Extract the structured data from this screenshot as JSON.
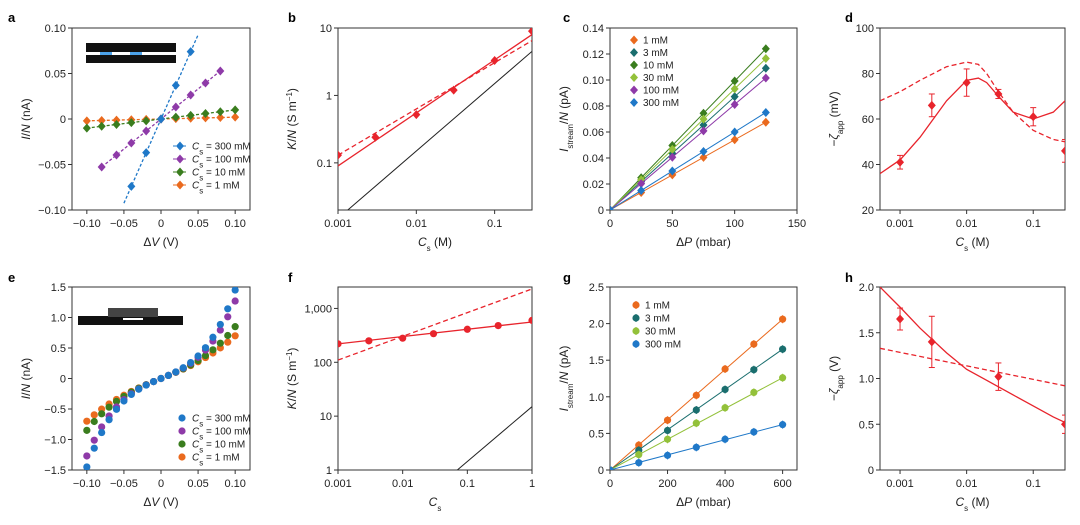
{
  "panels": [
    {
      "label": "a",
      "type": "scatter",
      "ylabel": "I/N (nA)",
      "xlabel": "ΔV (V)",
      "xlim": [
        -0.12,
        0.12
      ],
      "ylim": [
        -0.1,
        0.1
      ],
      "xticks": [
        -0.1,
        -0.05,
        0,
        0.05,
        0.1
      ],
      "xtick_labels": [
        "−0.10",
        "−0.05",
        "0",
        "0.05",
        "0.10"
      ],
      "yticks": [
        -0.1,
        -0.05,
        0,
        0.05,
        0.1
      ],
      "ytick_labels": [
        "−0.10",
        "−0.05",
        "0",
        "0.05",
        "0.10"
      ],
      "legend": [
        "C_s = 300 mM",
        "C_s = 100 mM",
        "C_s = 10 mM",
        "C_s = 1 mM"
      ],
      "inset": "device-schematic-a"
    },
    {
      "label": "b",
      "type": "line-log",
      "ylabel": "K/N (S m⁻¹)",
      "xlabel": "C_s (M)",
      "xticks": [
        0.001,
        0.01,
        0.1
      ],
      "xtick_labels": [
        "0.001",
        "0.01",
        "0.1"
      ],
      "yticks": [
        0.1,
        1,
        10
      ],
      "ytick_labels": [
        "0.1",
        "1",
        "10"
      ]
    },
    {
      "label": "c",
      "type": "scatter",
      "ylabel": "I_stream/N (pA)",
      "xlabel": "ΔP (mbar)",
      "xticks": [
        0,
        50,
        100,
        150
      ],
      "xtick_labels": [
        "0",
        "50",
        "100",
        "150"
      ],
      "yticks": [
        0,
        0.02,
        0.04,
        0.06,
        0.08,
        0.1,
        0.12,
        0.14
      ],
      "ytick_labels": [
        "0",
        "0.02",
        "0.04",
        "0.06",
        "0.08",
        "0.10",
        "0.12",
        "0.14"
      ],
      "legend": [
        "1 mM",
        "3 mM",
        "10 mM",
        "30 mM",
        "100 mM",
        "300 mM"
      ]
    },
    {
      "label": "d",
      "type": "line-log",
      "ylabel": "−ζ_app (mV)",
      "xlabel": "C_s (M)",
      "xticks": [
        0.001,
        0.01,
        0.1
      ],
      "xtick_labels": [
        "0.001",
        "0.01",
        "0.1"
      ],
      "yticks": [
        20,
        40,
        60,
        80,
        100
      ],
      "ytick_labels": [
        "20",
        "40",
        "60",
        "80",
        "100"
      ]
    },
    {
      "label": "e",
      "type": "scatter",
      "ylabel": "I/N (nA)",
      "xlabel": "ΔV (V)",
      "xticks": [
        -0.1,
        -0.05,
        0,
        0.05,
        0.1
      ],
      "xtick_labels": [
        "−0.10",
        "−0.05",
        "0",
        "0.05",
        "0.10"
      ],
      "yticks": [
        -1.5,
        -1,
        -0.5,
        0,
        0.5,
        1,
        1.5
      ],
      "ytick_labels": [
        "−1.5",
        "−1.0",
        "−0.5",
        "0",
        "0.5",
        "1.0",
        "1.5"
      ],
      "legend": [
        "C_s = 300 mM",
        "C_s = 100 mM",
        "C_s = 10 mM",
        "C_s = 1 mM"
      ],
      "inset": "device-schematic-e"
    },
    {
      "label": "f",
      "type": "line-log",
      "ylabel": "K/N (S m⁻¹)",
      "xlabel": "C_s (M)",
      "xticks": [
        0.001,
        0.01,
        0.1,
        1
      ],
      "xtick_labels": [
        "0.001",
        "0.01",
        "0.1",
        "1"
      ],
      "yticks": [
        1,
        10,
        100,
        1000
      ],
      "ytick_labels": [
        "1",
        "10",
        "100",
        "1,000"
      ]
    },
    {
      "label": "g",
      "type": "scatter",
      "ylabel": "I_stream/N (pA)",
      "xlabel": "ΔP (mbar)",
      "xticks": [
        0,
        200,
        400,
        600
      ],
      "xtick_labels": [
        "0",
        "200",
        "400",
        "600"
      ],
      "yticks": [
        0,
        0.5,
        1,
        1.5,
        2,
        2.5
      ],
      "ytick_labels": [
        "0",
        "0.5",
        "1.0",
        "1.5",
        "2.0",
        "2.5"
      ],
      "legend": [
        "1 mM",
        "3 mM",
        "30 mM",
        "300 mM"
      ]
    },
    {
      "label": "h",
      "type": "line-log",
      "ylabel": "−ζ_app (V)",
      "xlabel": "C_s (M)",
      "xticks": [
        0.001,
        0.01,
        0.1
      ],
      "xtick_labels": [
        "0.001",
        "0.01",
        "0.1"
      ],
      "yticks": [
        0,
        0.5,
        1,
        1.5,
        2
      ],
      "ytick_labels": [
        "0",
        "0.5",
        "1.0",
        "1.5",
        "2.0"
      ]
    }
  ],
  "chart_data": [
    {
      "panel": "a",
      "type": "scatter",
      "xlabel": "ΔV (V)",
      "ylabel": "I/N (nA)",
      "xlim": [
        -0.12,
        0.12
      ],
      "ylim": [
        -0.1,
        0.1
      ],
      "x": [
        -0.1,
        -0.08,
        -0.06,
        -0.04,
        -0.02,
        0,
        0.02,
        0.04,
        0.06,
        0.08,
        0.1
      ],
      "series": [
        {
          "name": "C_s = 300 mM",
          "color": "#1f78c8",
          "marker": "diamond",
          "slope": 1.85,
          "xrange": [
            -0.05,
            0.05
          ],
          "values": [
            -0.0925,
            -0.074,
            -0.0555,
            -0.037,
            -0.0185,
            0,
            0.0185,
            0.037,
            0.0555,
            0.074,
            0.0925
          ]
        },
        {
          "name": "C_s = 100 mM",
          "color": "#8e3aa8",
          "marker": "diamond",
          "slope": 0.66,
          "xrange": [
            -0.08,
            0.08
          ],
          "values": [
            -0.053,
            -0.04,
            -0.026,
            -0.013,
            0,
            0.013,
            0.026,
            0.04,
            0.053
          ]
        },
        {
          "name": "C_s = 10 mM",
          "color": "#3a7d1e",
          "marker": "diamond",
          "slope": 0.1,
          "xrange": [
            -0.1,
            0.1
          ],
          "values": [
            -0.01,
            -0.008,
            -0.006,
            -0.004,
            -0.002,
            0,
            0.002,
            0.004,
            0.006,
            0.008,
            0.01
          ]
        },
        {
          "name": "C_s = 1 mM",
          "color": "#ea6a1e",
          "marker": "diamond",
          "slope": 0.02,
          "xrange": [
            -0.1,
            0.1
          ],
          "values": [
            -0.002,
            -0.0016,
            -0.0012,
            -0.0008,
            -0.0004,
            0,
            0.0004,
            0.0008,
            0.0012,
            0.0016,
            0.002
          ]
        }
      ]
    },
    {
      "panel": "b",
      "type": "line",
      "xscale": "log",
      "yscale": "log",
      "xlim": [
        0.001,
        0.3
      ],
      "ylim": [
        0.02,
        10
      ],
      "points": {
        "x": [
          0.001,
          0.003,
          0.01,
          0.03,
          0.1,
          0.3
        ],
        "y": [
          0.13,
          0.24,
          0.52,
          1.2,
          3.3,
          9.0
        ]
      },
      "fit_solid": {
        "x": [
          0.001,
          0.3
        ],
        "y": [
          0.09,
          8.0
        ]
      },
      "fit_dashed": {
        "x": [
          0.001,
          0.3
        ],
        "y": [
          0.13,
          6.5
        ]
      },
      "bulk_line": {
        "x": [
          0.001,
          0.3
        ],
        "y": [
          0.015,
          4.5
        ]
      }
    },
    {
      "panel": "c",
      "type": "scatter",
      "xlim": [
        0,
        150
      ],
      "ylim": [
        0,
        0.14
      ],
      "x": [
        0,
        25,
        50,
        75,
        100,
        125
      ],
      "series": [
        {
          "name": "1 mM",
          "color": "#ea6a1e",
          "values": [
            0,
            0.0135,
            0.027,
            0.0405,
            0.054,
            0.0675
          ]
        },
        {
          "name": "3 mM",
          "color": "#1a6e6e",
          "values": [
            0,
            0.0218,
            0.0436,
            0.0654,
            0.0872,
            0.109
          ]
        },
        {
          "name": "10 mM",
          "color": "#3a7d1e",
          "values": [
            0,
            0.0248,
            0.0496,
            0.0744,
            0.0992,
            0.124
          ]
        },
        {
          "name": "30 mM",
          "color": "#93c13a",
          "values": [
            0,
            0.0233,
            0.0466,
            0.0699,
            0.0932,
            0.1165
          ]
        },
        {
          "name": "100 mM",
          "color": "#8e3aa8",
          "values": [
            0,
            0.0203,
            0.0406,
            0.0609,
            0.0812,
            0.1015
          ]
        },
        {
          "name": "300 mM",
          "color": "#1f78c8",
          "values": [
            0,
            0.015,
            0.03,
            0.045,
            0.06,
            0.075
          ]
        }
      ]
    },
    {
      "panel": "d",
      "type": "line",
      "xscale": "log",
      "xlim": [
        0.0005,
        0.3
      ],
      "ylim": [
        20,
        100
      ],
      "points": {
        "x": [
          0.001,
          0.003,
          0.01,
          0.03,
          0.1,
          0.3
        ],
        "y": [
          41,
          66,
          76,
          71,
          61,
          46
        ],
        "err": [
          3,
          5,
          6,
          2,
          4,
          5
        ]
      },
      "fit_solid": {
        "x": [
          0.0005,
          0.001,
          0.002,
          0.005,
          0.01,
          0.015,
          0.02,
          0.03,
          0.05,
          0.1,
          0.2,
          0.3
        ],
        "y": [
          36,
          42,
          52,
          68,
          77,
          78,
          76,
          70,
          63,
          60,
          63,
          68
        ]
      },
      "fit_dashed": {
        "x": [
          0.0005,
          0.001,
          0.002,
          0.005,
          0.01,
          0.015,
          0.02,
          0.03,
          0.05,
          0.1,
          0.2,
          0.3
        ],
        "y": [
          68,
          72,
          77,
          83,
          85,
          84,
          80,
          72,
          63,
          55,
          51,
          50
        ]
      }
    },
    {
      "panel": "e",
      "type": "scatter",
      "xlim": [
        -0.12,
        0.12
      ],
      "ylim": [
        -1.5,
        1.5
      ],
      "x": [
        -0.1,
        -0.09,
        -0.08,
        -0.07,
        -0.06,
        -0.05,
        -0.04,
        -0.03,
        -0.02,
        -0.01,
        0,
        0.01,
        0.02,
        0.03,
        0.04,
        0.05,
        0.06,
        0.07,
        0.08,
        0.09,
        0.1
      ],
      "series": [
        {
          "name": "C_s = 300 mM",
          "color": "#1f78c8",
          "ymax": 1.45
        },
        {
          "name": "C_s = 100 mM",
          "color": "#8e3aa8",
          "ymax": 1.27
        },
        {
          "name": "C_s = 10 mM",
          "color": "#3a7d1e",
          "ymax": 0.85
        },
        {
          "name": "C_s = 1 mM",
          "color": "#ea6a1e",
          "ymax": 0.7
        }
      ]
    },
    {
      "panel": "f",
      "type": "line",
      "xscale": "log",
      "yscale": "log",
      "xlim": [
        0.001,
        1
      ],
      "ylim": [
        1,
        2500
      ],
      "points": {
        "x": [
          0.001,
          0.003,
          0.01,
          0.03,
          0.1,
          0.3,
          1
        ],
        "y": [
          220,
          250,
          280,
          340,
          410,
          480,
          600
        ]
      },
      "fit_solid": {
        "x": [
          0.001,
          1
        ],
        "y": [
          220,
          560
        ]
      },
      "fit_dashed": {
        "x": [
          0.001,
          1
        ],
        "y": [
          110,
          2300
        ]
      },
      "bulk_line": {
        "x": [
          0.07,
          1
        ],
        "y": [
          1,
          15
        ]
      }
    },
    {
      "panel": "g",
      "type": "scatter",
      "xlim": [
        0,
        650
      ],
      "ylim": [
        0,
        2.5
      ],
      "x": [
        0,
        100,
        200,
        300,
        400,
        500,
        600
      ],
      "series": [
        {
          "name": "1 mM",
          "color": "#ea6a1e",
          "values": [
            0,
            0.34,
            0.68,
            1.02,
            1.38,
            1.72,
            2.06
          ]
        },
        {
          "name": "3 mM",
          "color": "#1a6e6e",
          "values": [
            0,
            0.27,
            0.54,
            0.82,
            1.1,
            1.37,
            1.65
          ]
        },
        {
          "name": "30 mM",
          "color": "#93c13a",
          "values": [
            0,
            0.21,
            0.42,
            0.64,
            0.85,
            1.06,
            1.26
          ]
        },
        {
          "name": "300 mM",
          "color": "#1f78c8",
          "values": [
            0,
            0.1,
            0.2,
            0.31,
            0.42,
            0.52,
            0.62
          ]
        }
      ]
    },
    {
      "panel": "h",
      "type": "line",
      "xscale": "log",
      "xlim": [
        0.0005,
        0.3
      ],
      "ylim": [
        0,
        2
      ],
      "points": {
        "x": [
          0.001,
          0.003,
          0.03,
          0.3
        ],
        "y": [
          1.65,
          1.4,
          1.02,
          0.5
        ],
        "err": [
          0.12,
          0.28,
          0.15,
          0.1
        ]
      },
      "fit_solid": {
        "x": [
          0.0005,
          0.001,
          0.002,
          0.005,
          0.01,
          0.02,
          0.05,
          0.1,
          0.2,
          0.3
        ],
        "y": [
          2.0,
          1.78,
          1.55,
          1.28,
          1.1,
          0.98,
          0.82,
          0.7,
          0.58,
          0.52
        ]
      },
      "fit_dashed": {
        "x": [
          0.0005,
          0.3
        ],
        "y": [
          1.33,
          0.92
        ]
      }
    }
  ]
}
